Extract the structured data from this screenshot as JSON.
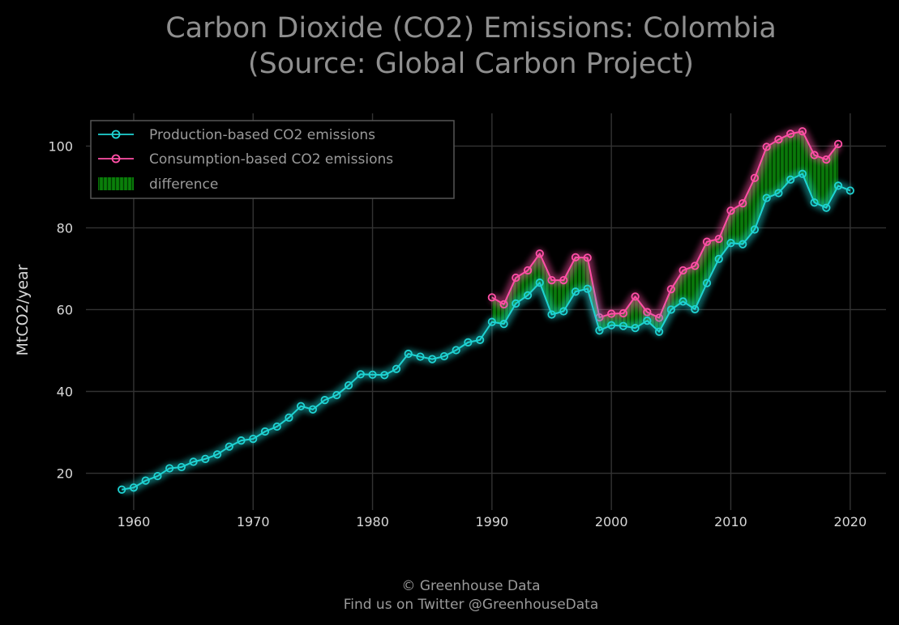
{
  "chart_data": {
    "type": "line",
    "title": "Carbon Dioxide (CO2) Emissions: Colombia",
    "subtitle": "(Source: Global Carbon Project)",
    "xlabel": "",
    "ylabel": "MtCO2/year",
    "xlim": [
      1956,
      2023
    ],
    "ylim": [
      11,
      108
    ],
    "xticks": [
      1960,
      1970,
      1980,
      1990,
      2000,
      2010,
      2020
    ],
    "yticks": [
      20,
      40,
      60,
      80,
      100
    ],
    "grid": true,
    "legend_position": "top-left",
    "colors": {
      "production": "#1fd3d3",
      "consumption": "#ff4fa6",
      "difference": "#0a8a0a",
      "grid": "#333333",
      "background": "#000000"
    },
    "legend": [
      {
        "label": "Production-based CO2 emissions",
        "icon": "cyan-line-circle-marker"
      },
      {
        "label": "Consumption-based CO2 emissions",
        "icon": "pink-line-circle-marker"
      },
      {
        "label": "difference",
        "icon": "green-hatched-patch"
      }
    ],
    "series": [
      {
        "name": "Production-based CO2 emissions",
        "x": [
          1959,
          1960,
          1961,
          1962,
          1963,
          1964,
          1965,
          1966,
          1967,
          1968,
          1969,
          1970,
          1971,
          1972,
          1973,
          1974,
          1975,
          1976,
          1977,
          1978,
          1979,
          1980,
          1981,
          1982,
          1983,
          1984,
          1985,
          1986,
          1987,
          1988,
          1989,
          1990,
          1991,
          1992,
          1993,
          1994,
          1995,
          1996,
          1997,
          1998,
          1999,
          2000,
          2001,
          2002,
          2003,
          2004,
          2005,
          2006,
          2007,
          2008,
          2009,
          2010,
          2011,
          2012,
          2013,
          2014,
          2015,
          2016,
          2017,
          2018,
          2019,
          2020
        ],
        "values": [
          16.0,
          16.5,
          18.2,
          19.3,
          21.2,
          21.5,
          22.8,
          23.5,
          24.6,
          26.5,
          28.0,
          28.4,
          30.2,
          31.4,
          33.6,
          36.4,
          35.6,
          37.9,
          39.1,
          41.5,
          44.2,
          44.1,
          44.0,
          45.5,
          49.2,
          48.5,
          47.9,
          48.6,
          50.1,
          52.0,
          52.6,
          57.0,
          56.5,
          61.5,
          63.5,
          66.6,
          58.8,
          59.6,
          64.4,
          65.1,
          54.9,
          56.2,
          56.0,
          55.5,
          57.3,
          54.6,
          60.0,
          62.0,
          60.1,
          66.5,
          72.4,
          76.3,
          76.0,
          79.6,
          87.3,
          88.5,
          91.8,
          93.2,
          86.2,
          84.9,
          90.3,
          89.1
        ]
      },
      {
        "name": "Consumption-based CO2 emissions",
        "x": [
          1990,
          1991,
          1992,
          1993,
          1994,
          1995,
          1996,
          1997,
          1998,
          1999,
          2000,
          2001,
          2002,
          2003,
          2004,
          2005,
          2006,
          2007,
          2008,
          2009,
          2010,
          2011,
          2012,
          2013,
          2014,
          2015,
          2016,
          2017,
          2018,
          2019
        ],
        "values": [
          63.0,
          61.3,
          67.8,
          69.6,
          73.7,
          67.2,
          67.2,
          72.8,
          72.7,
          58.1,
          59.0,
          59.1,
          63.2,
          59.4,
          58.0,
          65.0,
          69.6,
          70.7,
          76.6,
          77.3,
          84.2,
          86.0,
          92.2,
          99.8,
          101.6,
          103.0,
          103.6,
          97.8,
          96.7,
          100.5
        ]
      }
    ]
  },
  "footer": {
    "line1": "© Greenhouse Data",
    "line2": "Find us on Twitter @GreenhouseData"
  }
}
